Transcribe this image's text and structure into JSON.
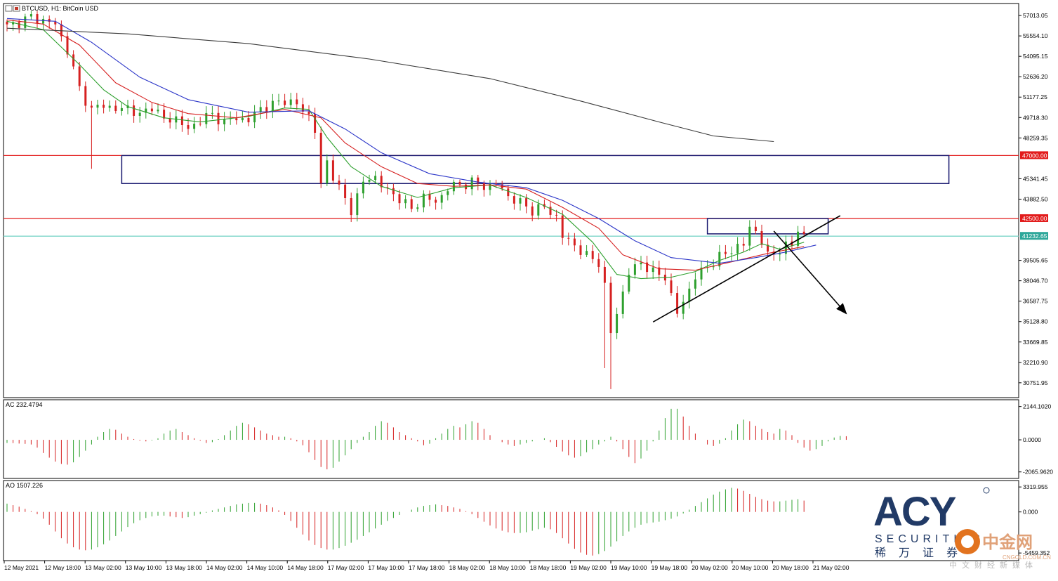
{
  "chart_data": {
    "type": "candlestick",
    "symbol_label": "BTCUSD, H1:  BitCoin USD",
    "price_axis": {
      "min": 29840,
      "max": 57720,
      "ticks": [
        "57013.05",
        "55554.10",
        "54095.15",
        "52636.20",
        "51177.25",
        "49718.30",
        "48259.35",
        "45341.45",
        "43882.50",
        "39505.65",
        "38046.70",
        "36587.75",
        "35128.80",
        "33669.85",
        "32210.90",
        "30751.95"
      ]
    },
    "price_tags": [
      {
        "text": "47000.00",
        "value": 47000,
        "color": "#e21b1b"
      },
      {
        "text": "42500.00",
        "value": 42500,
        "color": "#e21b1b"
      },
      {
        "text": "41232.65",
        "value": 41232.65,
        "color": "#2ea79a"
      }
    ],
    "horizontal_lines": [
      {
        "value": 47000,
        "color": "#e21b1b"
      },
      {
        "value": 42500,
        "color": "#e21b1b"
      },
      {
        "value": 41232.65,
        "color": "#7ed6c8"
      }
    ],
    "time_labels": [
      "12 May 2021",
      "12 May 18:00",
      "13 May 02:00",
      "13 May 10:00",
      "13 May 18:00",
      "14 May 02:00",
      "14 May 10:00",
      "14 May 18:00",
      "17 May 02:00",
      "17 May 10:00",
      "17 May 18:00",
      "18 May 02:00",
      "18 May 10:00",
      "18 May 18:00",
      "19 May 02:00",
      "19 May 10:00",
      "19 May 18:00",
      "20 May 02:00",
      "20 May 10:00",
      "20 May 18:00",
      "21 May 02:00"
    ],
    "price_path": [
      [
        0,
        56200
      ],
      [
        4,
        56900
      ],
      [
        8,
        56400
      ],
      [
        10,
        54500
      ],
      [
        12,
        51800
      ],
      [
        14,
        50200
      ],
      [
        16,
        50700
      ],
      [
        18,
        50200
      ],
      [
        20,
        50500
      ],
      [
        22,
        49800
      ],
      [
        24,
        50600
      ],
      [
        26,
        49500
      ],
      [
        28,
        49700
      ],
      [
        30,
        48800
      ],
      [
        32,
        49600
      ],
      [
        34,
        49900
      ],
      [
        36,
        49400
      ],
      [
        38,
        49700
      ],
      [
        40,
        49500
      ],
      [
        42,
        50400
      ],
      [
        44,
        50600
      ],
      [
        46,
        51000
      ],
      [
        48,
        50600
      ],
      [
        50,
        49900
      ],
      [
        51,
        48800
      ],
      [
        52,
        44800
      ],
      [
        53,
        46600
      ],
      [
        55,
        44600
      ],
      [
        57,
        43100
      ],
      [
        59,
        45100
      ],
      [
        61,
        45500
      ],
      [
        63,
        44400
      ],
      [
        65,
        44000
      ],
      [
        67,
        43100
      ],
      [
        69,
        44100
      ],
      [
        71,
        43600
      ],
      [
        73,
        44700
      ],
      [
        75,
        44900
      ],
      [
        77,
        45100
      ],
      [
        79,
        44800
      ],
      [
        81,
        45000
      ],
      [
        83,
        44100
      ],
      [
        85,
        43600
      ],
      [
        87,
        43100
      ],
      [
        89,
        43300
      ],
      [
        91,
        42600
      ],
      [
        92,
        41200
      ],
      [
        94,
        40600
      ],
      [
        96,
        39800
      ],
      [
        98,
        39400
      ],
      [
        99,
        37600
      ],
      [
        100,
        34300
      ],
      [
        101,
        35800
      ],
      [
        102,
        37200
      ],
      [
        103,
        38600
      ],
      [
        105,
        39400
      ],
      [
        107,
        38600
      ],
      [
        109,
        38400
      ],
      [
        110,
        36900
      ],
      [
        111,
        35700
      ],
      [
        112,
        36600
      ],
      [
        114,
        38300
      ],
      [
        116,
        39100
      ],
      [
        118,
        39700
      ],
      [
        120,
        40300
      ],
      [
        122,
        40600
      ],
      [
        123,
        41900
      ],
      [
        124,
        41600
      ],
      [
        125,
        40800
      ],
      [
        126,
        39800
      ],
      [
        128,
        40300
      ],
      [
        130,
        40600
      ],
      [
        131,
        41800
      ],
      [
        132,
        41200
      ]
    ],
    "ma_lines": [
      {
        "color": "#2ea02e",
        "points": [
          [
            0,
            56600
          ],
          [
            6,
            56000
          ],
          [
            12,
            53500
          ],
          [
            16,
            51700
          ],
          [
            20,
            50500
          ],
          [
            26,
            49700
          ],
          [
            32,
            49400
          ],
          [
            40,
            49800
          ],
          [
            46,
            50400
          ],
          [
            50,
            50300
          ],
          [
            53,
            48300
          ],
          [
            57,
            46200
          ],
          [
            62,
            44800
          ],
          [
            68,
            44000
          ],
          [
            74,
            44700
          ],
          [
            80,
            44900
          ],
          [
            86,
            44000
          ],
          [
            92,
            42800
          ],
          [
            97,
            40800
          ],
          [
            101,
            38500
          ],
          [
            105,
            38200
          ],
          [
            110,
            38300
          ],
          [
            114,
            38700
          ],
          [
            118,
            39500
          ],
          [
            122,
            40100
          ],
          [
            125,
            40700
          ],
          [
            128,
            40300
          ],
          [
            132,
            40800
          ]
        ]
      },
      {
        "color": "#d62020",
        "points": [
          [
            0,
            56700
          ],
          [
            6,
            56400
          ],
          [
            12,
            54900
          ],
          [
            18,
            52200
          ],
          [
            24,
            50800
          ],
          [
            30,
            50000
          ],
          [
            38,
            49700
          ],
          [
            46,
            50300
          ],
          [
            52,
            49700
          ],
          [
            56,
            47900
          ],
          [
            62,
            46200
          ],
          [
            68,
            45000
          ],
          [
            74,
            44800
          ],
          [
            80,
            44900
          ],
          [
            86,
            44600
          ],
          [
            92,
            43300
          ],
          [
            98,
            41800
          ],
          [
            102,
            39900
          ],
          [
            108,
            38900
          ],
          [
            114,
            38800
          ],
          [
            120,
            39400
          ],
          [
            126,
            40000
          ],
          [
            132,
            40500
          ]
        ]
      },
      {
        "color": "#2b35c8",
        "points": [
          [
            0,
            56800
          ],
          [
            8,
            56600
          ],
          [
            14,
            55100
          ],
          [
            22,
            52600
          ],
          [
            30,
            51000
          ],
          [
            40,
            50100
          ],
          [
            50,
            50200
          ],
          [
            56,
            48900
          ],
          [
            62,
            47200
          ],
          [
            70,
            45700
          ],
          [
            78,
            45100
          ],
          [
            86,
            44700
          ],
          [
            92,
            43800
          ],
          [
            98,
            42500
          ],
          [
            104,
            40900
          ],
          [
            110,
            39700
          ],
          [
            118,
            39300
          ],
          [
            124,
            39700
          ],
          [
            129,
            40100
          ],
          [
            134,
            40600
          ]
        ]
      },
      {
        "color": "#3a3a3a",
        "points": [
          [
            0,
            56100
          ],
          [
            20,
            55700
          ],
          [
            40,
            55000
          ],
          [
            60,
            53900
          ],
          [
            80,
            52500
          ],
          [
            95,
            50900
          ],
          [
            108,
            49400
          ],
          [
            117,
            48400
          ],
          [
            127,
            48000
          ]
        ]
      }
    ],
    "annotations": {
      "zone_boxes": [
        {
          "x0": 19,
          "x1": 156,
          "y_top": 47000,
          "y_bottom": 45000,
          "stroke": "#16166e"
        },
        {
          "x0": 116,
          "x1": 136,
          "y_top": 42500,
          "y_bottom": 41400,
          "stroke": "#16166e"
        }
      ],
      "trendlines": [
        {
          "from": [
            107,
            35100
          ],
          "to": [
            138,
            42700
          ]
        },
        {
          "from": [
            127,
            41600
          ],
          "to": [
            139,
            35700
          ],
          "arrow": true
        }
      ]
    },
    "ac_indicator": {
      "label": "AC 232.4794",
      "ticks": [
        "2144.1020",
        "0.0000",
        "-2065.9620"
      ],
      "range": [
        -2350,
        2400
      ],
      "values": [
        -200,
        -210,
        -240,
        -260,
        -300,
        -500,
        -850,
        -1150,
        -1400,
        -1550,
        -1600,
        -1450,
        -1100,
        -700,
        -300,
        200,
        500,
        700,
        650,
        400,
        200,
        50,
        -50,
        -100,
        -40,
        100,
        400,
        600,
        700,
        500,
        300,
        100,
        -50,
        -200,
        -150,
        50,
        300,
        600,
        900,
        1100,
        1000,
        800,
        600,
        400,
        300,
        200,
        200,
        100,
        -100,
        -350,
        -800,
        -1300,
        -1750,
        -1900,
        -1800,
        -1400,
        -1000,
        -600,
        -200,
        200,
        500,
        900,
        1200,
        1100,
        800,
        500,
        300,
        100,
        -100,
        -350,
        -250,
        100,
        400,
        700,
        900,
        800,
        1000,
        1200,
        1100,
        700,
        300,
        0,
        -150,
        -300,
        -400,
        -300,
        -200,
        -100,
        0,
        100,
        -150,
        -450,
        -750,
        -1000,
        -1150,
        -1050,
        -800,
        -600,
        -300,
        -100,
        200,
        -100,
        -600,
        -1100,
        -1500,
        -1200,
        -700,
        -100,
        600,
        1400,
        2000,
        2000,
        1500,
        900,
        400,
        0,
        -300,
        -400,
        -250,
        100,
        600,
        1000,
        1300,
        1200,
        900,
        700,
        500,
        400,
        700,
        600,
        300,
        -200,
        -500,
        -700,
        -600,
        -400,
        -100,
        150,
        250,
        232
      ]
    },
    "ao_indicator": {
      "label": "AO 1507.226",
      "ticks": [
        "3319.955",
        "0.000",
        "-5459.352"
      ],
      "range": [
        -6100,
        3800
      ],
      "values": [
        1100,
        900,
        700,
        400,
        100,
        -300,
        -900,
        -1700,
        -2600,
        -3500,
        -4200,
        -4700,
        -5000,
        -5100,
        -5000,
        -4700,
        -4300,
        -3800,
        -3200,
        -2600,
        -2000,
        -1500,
        -1100,
        -800,
        -600,
        -500,
        -500,
        -600,
        -700,
        -800,
        -700,
        -500,
        -300,
        -100,
        200,
        400,
        600,
        800,
        1000,
        1100,
        1200,
        1200,
        1100,
        900,
        600,
        200,
        -400,
        -1200,
        -2100,
        -3000,
        -3800,
        -4400,
        -4800,
        -5000,
        -5000,
        -4800,
        -4500,
        -4100,
        -3700,
        -3200,
        -2700,
        -2200,
        -1700,
        -1200,
        -800,
        -400,
        0,
        300,
        600,
        800,
        900,
        1000,
        900,
        800,
        600,
        400,
        100,
        -300,
        -800,
        -1300,
        -1800,
        -2200,
        -2500,
        -2700,
        -2800,
        -2800,
        -2700,
        -2500,
        -2300,
        -2100,
        -2300,
        -2800,
        -3500,
        -4200,
        -4900,
        -5400,
        -5700,
        -5800,
        -5600,
        -5200,
        -4600,
        -3900,
        -3200,
        -2600,
        -2100,
        -1700,
        -1500,
        -1400,
        -1300,
        -1100,
        -900,
        -600,
        -200,
        300,
        800,
        1300,
        1800,
        2300,
        2700,
        3000,
        3200,
        3100,
        2800,
        2400,
        2000,
        1700,
        1500,
        1400,
        1400,
        1500,
        1600,
        1700,
        1507
      ]
    }
  }
}
